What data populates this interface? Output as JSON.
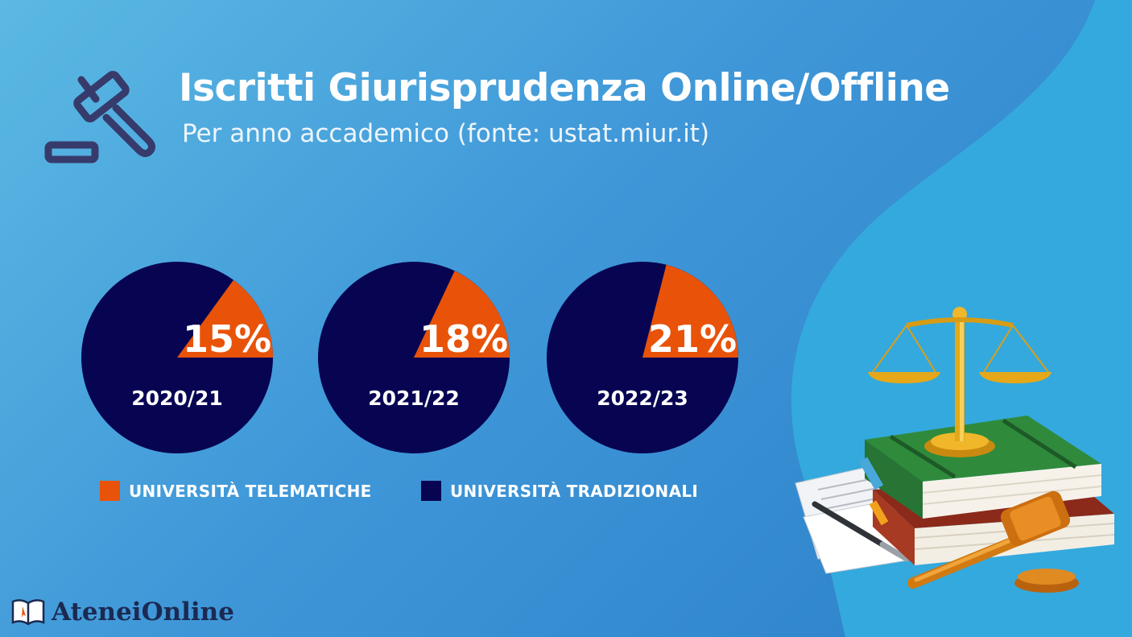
{
  "header": {
    "title": "Iscritti Giurisprudenza Online/Offline",
    "subtitle": "Per anno accademico (fonte: ustat.miur.it)"
  },
  "colors": {
    "telematiche": "#e85309",
    "tradizionali": "#070552"
  },
  "chart_data": [
    {
      "type": "pie",
      "year_label": "2020/21",
      "slices": [
        {
          "name": "UNIVERSITÀ TELEMATICHE",
          "value": 15,
          "label": "15%"
        },
        {
          "name": "UNIVERSITÀ TRADIZIONALI",
          "value": 85
        }
      ]
    },
    {
      "type": "pie",
      "year_label": "2021/22",
      "slices": [
        {
          "name": "UNIVERSITÀ TELEMATICHE",
          "value": 18,
          "label": "18%"
        },
        {
          "name": "UNIVERSITÀ TRADIZIONALI",
          "value": 82
        }
      ]
    },
    {
      "type": "pie",
      "year_label": "2022/23",
      "slices": [
        {
          "name": "UNIVERSITÀ TELEMATICHE",
          "value": 21,
          "label": "21%"
        },
        {
          "name": "UNIVERSITÀ TRADIZIONALI",
          "value": 79
        }
      ]
    }
  ],
  "legend": [
    {
      "label": "UNIVERSITÀ TELEMATICHE",
      "color": "#e85309"
    },
    {
      "label": "UNIVERSITÀ TRADIZIONALI",
      "color": "#070552"
    }
  ],
  "brand": {
    "name": "AteneiOnline",
    "icon": "open-book-icon"
  },
  "decor": {
    "header_icon": "gavel-icon",
    "illustration": "law-books-scales-gavel-illustration"
  }
}
